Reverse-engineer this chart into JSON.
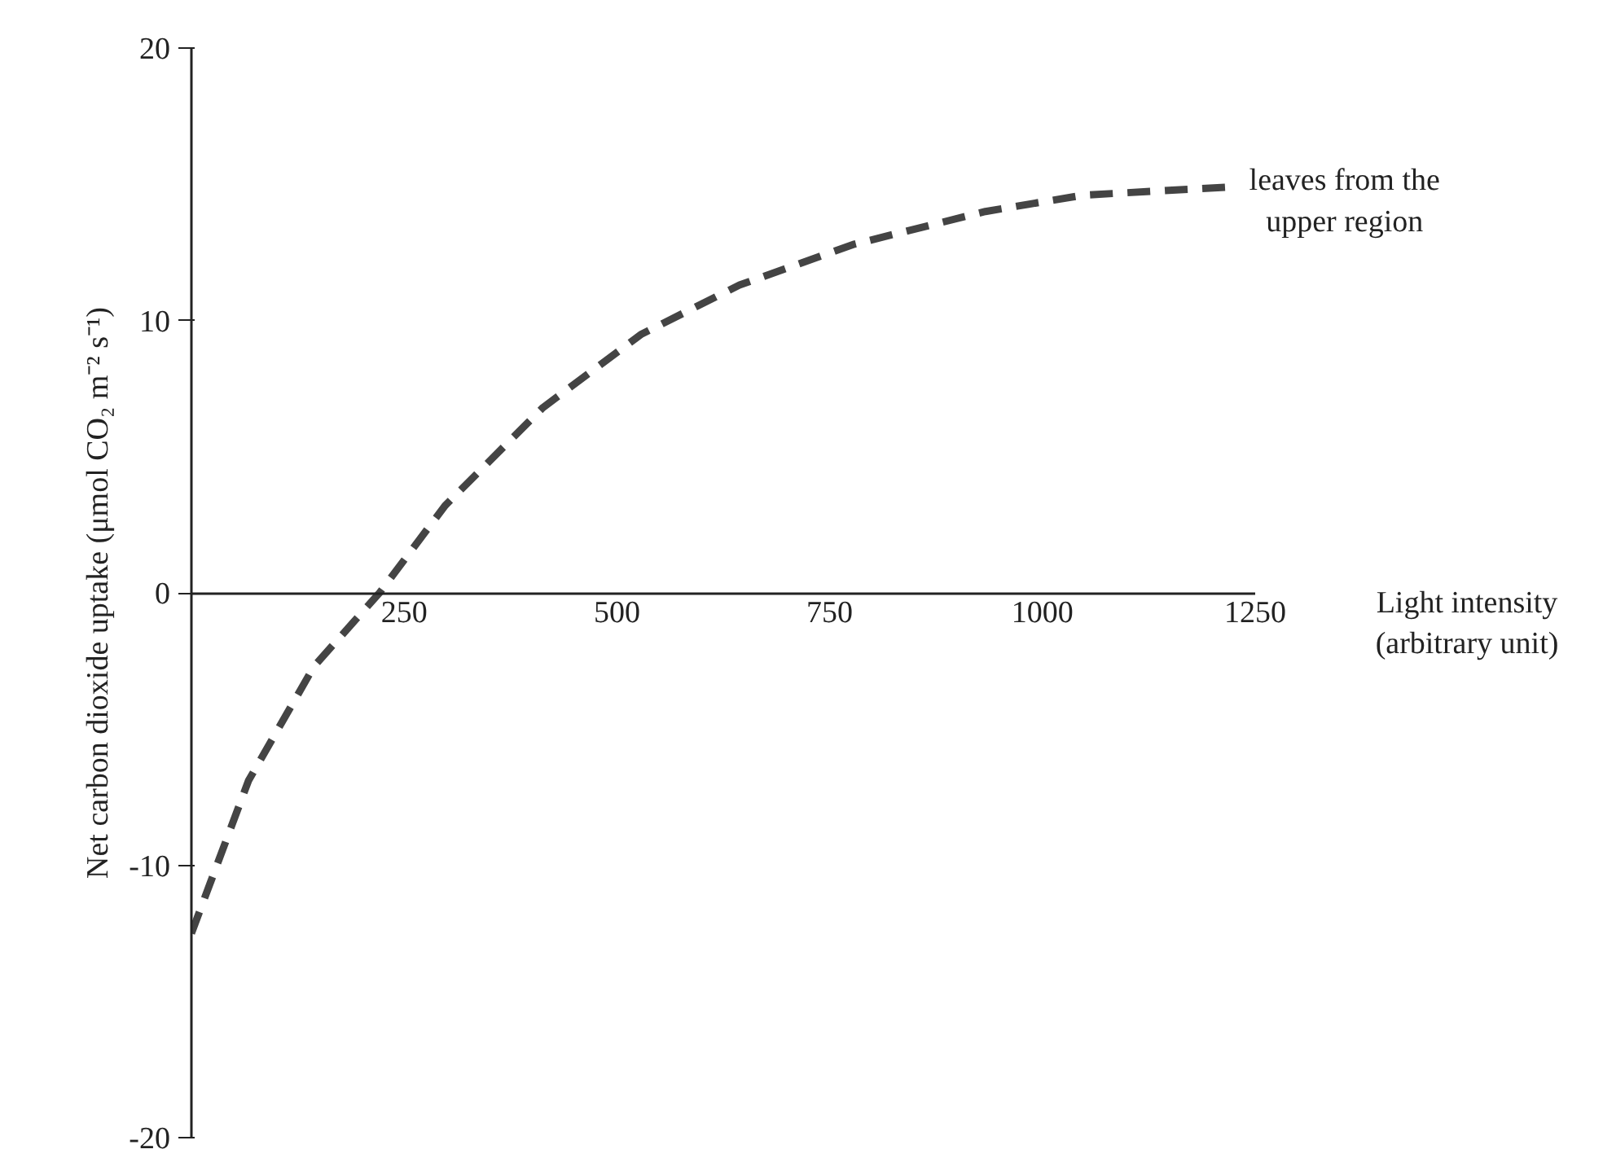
{
  "chart_data": {
    "type": "line",
    "xlabel": "Light intensity\n(arbitrary unit)",
    "ylabel": "Net carbon dioxide uptake (μmol CO₂ m⁻² s⁻¹)",
    "x": [
      0,
      67,
      144,
      221,
      298,
      413,
      529,
      644,
      779,
      933,
      1048,
      1221
    ],
    "series": [
      {
        "name": "leaves from the\nupper region",
        "color": "#444444",
        "values": [
          -12.5,
          -6.9,
          -2.7,
          0,
          3.2,
          6.8,
          9.5,
          11.3,
          12.8,
          14.0,
          14.6,
          14.9
        ]
      }
    ],
    "xlim": [
      0,
      1250
    ],
    "ylim": [
      -20,
      20
    ],
    "xticks": [
      250,
      500,
      750,
      1000,
      1250
    ],
    "yticks": [
      -20,
      -10,
      0,
      10,
      20
    ],
    "grid": false,
    "legend": false,
    "line_style": "dashed",
    "marker": "none"
  }
}
